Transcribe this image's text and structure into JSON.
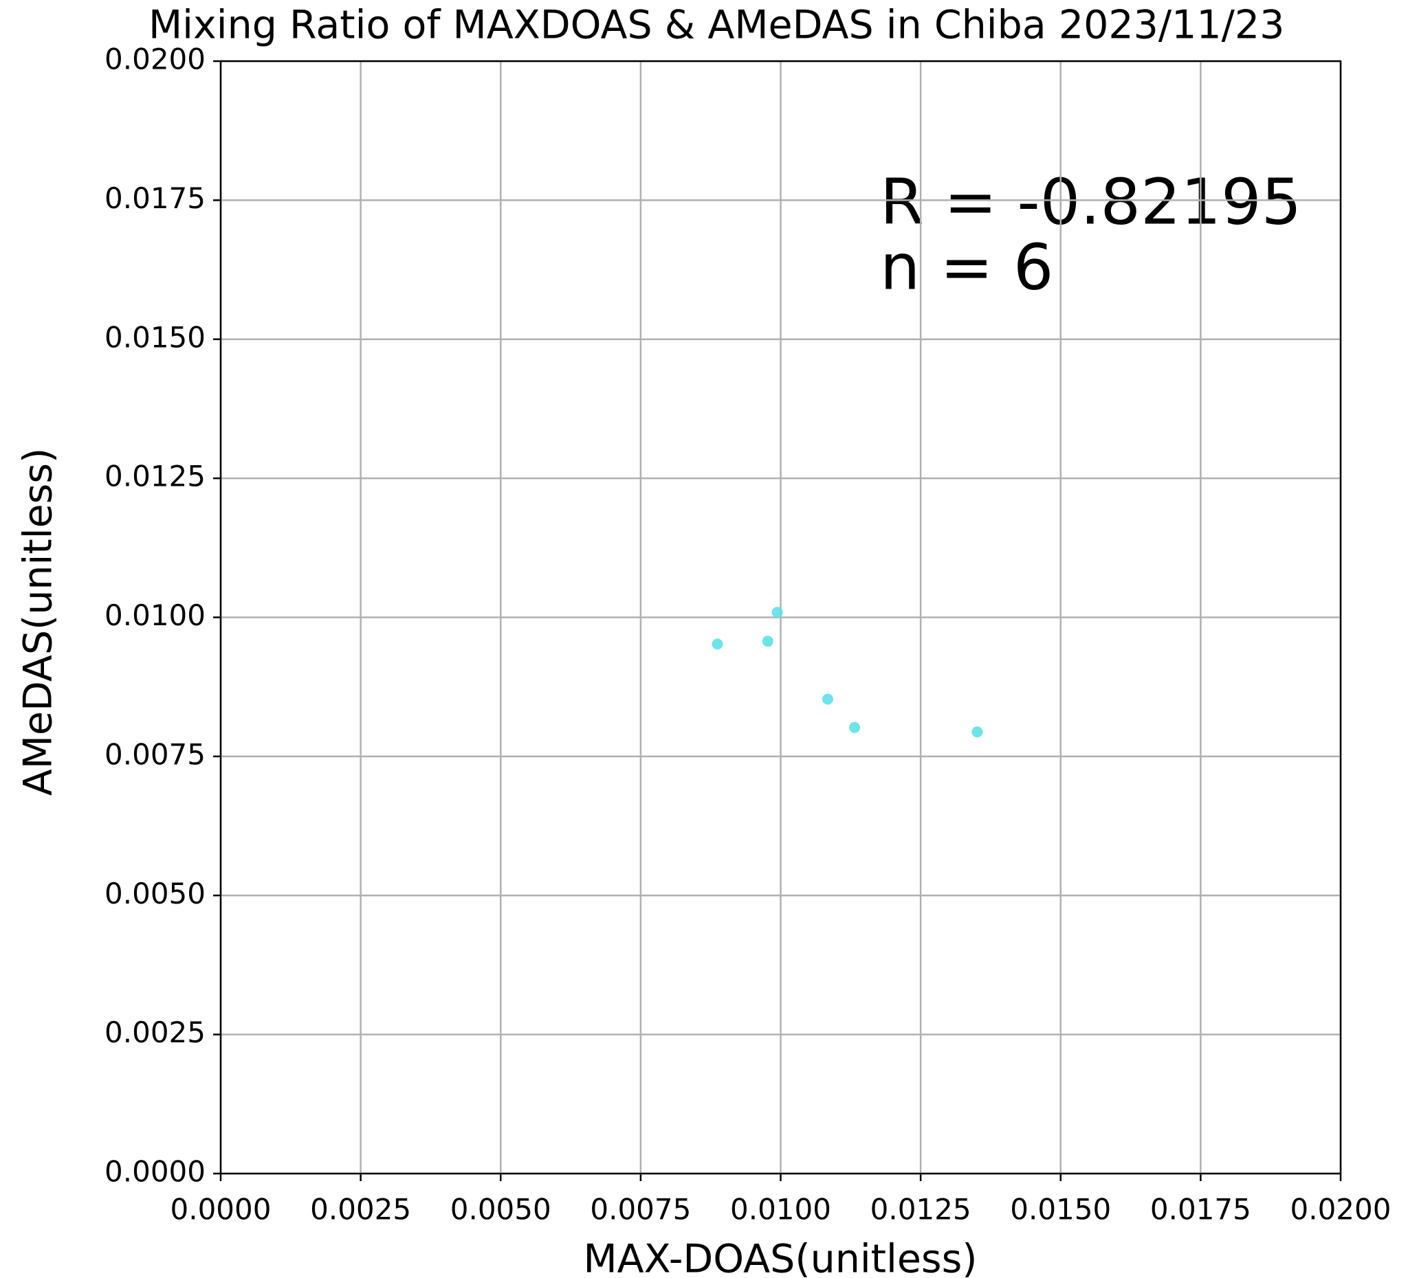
{
  "chart_data": {
    "type": "scatter",
    "title": "Mixing Ratio of MAXDOAS & AMeDAS in Chiba 2023/11/23",
    "x_label": "MAX-DOAS(unitless)",
    "y_label": "AMeDAS(unitless)",
    "annotations": [
      "R = -0.82195",
      "n = 6"
    ],
    "series": [
      {
        "color": "#5ce1e6",
        "x": [
          0.00887,
          0.00977,
          0.00994,
          0.01084,
          0.01132,
          0.01351
        ],
        "values": [
          0.00952,
          0.00957,
          0.01009,
          0.00853,
          0.00802,
          0.00794
        ]
      }
    ],
    "xlim": [
      0,
      0.02
    ],
    "ylim": [
      0,
      0.02
    ],
    "xticks": [
      {
        "value": 0,
        "label": "0.0000"
      },
      {
        "value": 0.0025,
        "label": "0.0025"
      },
      {
        "value": 0.005,
        "label": "0.0050"
      },
      {
        "value": 0.0075,
        "label": "0.0075"
      },
      {
        "value": 0.01,
        "label": "0.0100"
      },
      {
        "value": 0.0125,
        "label": "0.0125"
      },
      {
        "value": 0.015,
        "label": "0.0150"
      },
      {
        "value": 0.0175,
        "label": "0.0175"
      },
      {
        "value": 0.02,
        "label": "0.0200"
      }
    ],
    "yticks": [
      {
        "value": 0,
        "label": "0.0000"
      },
      {
        "value": 0.0025,
        "label": "0.0025"
      },
      {
        "value": 0.005,
        "label": "0.0050"
      },
      {
        "value": 0.0075,
        "label": "0.0075"
      },
      {
        "value": 0.01,
        "label": "0.0100"
      },
      {
        "value": 0.0125,
        "label": "0.0125"
      },
      {
        "value": 0.015,
        "label": "0.0150"
      },
      {
        "value": 0.0175,
        "label": "0.0175"
      },
      {
        "value": 0.02,
        "label": "0.0200"
      }
    ],
    "grid": true
  }
}
